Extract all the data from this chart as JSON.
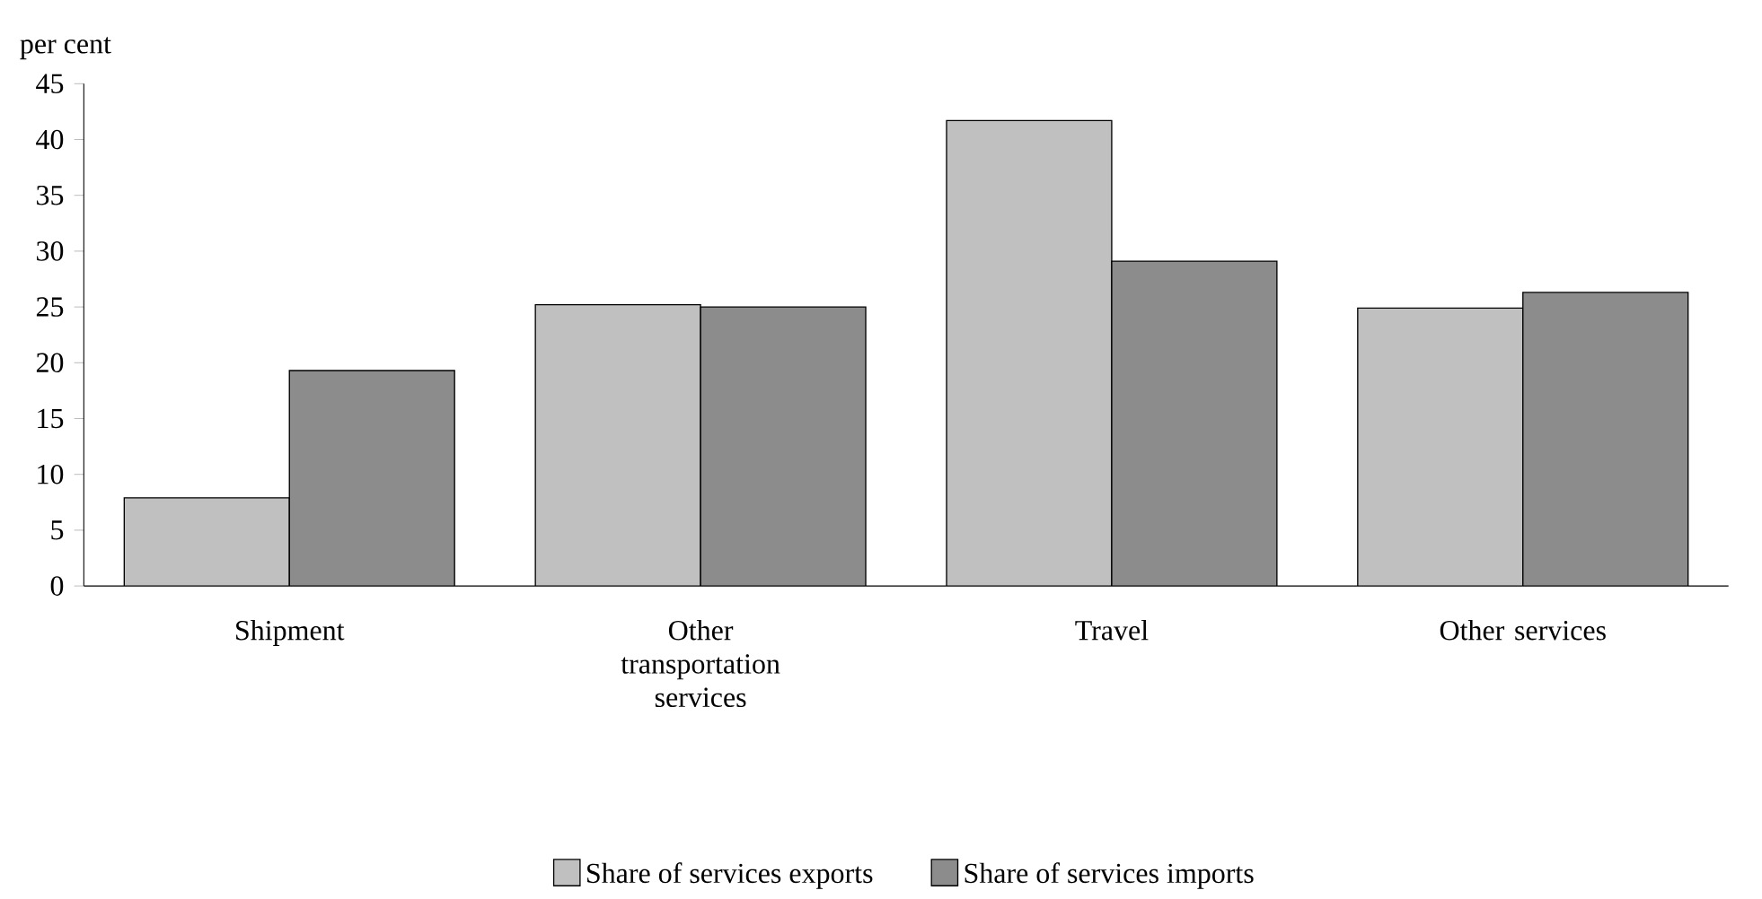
{
  "chart_data": {
    "type": "bar",
    "ylabel": "per cent",
    "categories": [
      "Shipment",
      "Other transportation services",
      "Travel",
      "Other services"
    ],
    "series": [
      {
        "name": "Share of services exports",
        "color": "#c0c0c0",
        "values": [
          7.9,
          25.2,
          41.7,
          24.9
        ]
      },
      {
        "name": "Share of services imports",
        "color": "#8c8c8c",
        "values": [
          19.3,
          25.0,
          29.1,
          26.3
        ]
      }
    ],
    "ylim": [
      0,
      45
    ],
    "yticks": [
      0,
      5,
      10,
      15,
      20,
      25,
      30,
      35,
      40,
      45
    ],
    "grid": false,
    "legend": "bottom"
  }
}
